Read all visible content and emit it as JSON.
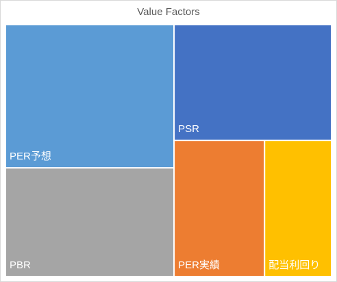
{
  "chart_data": {
    "type": "treemap",
    "title": "Value Factors",
    "categories": [
      "PER予想",
      "PBR",
      "PSR",
      "PER実績",
      "配当利回り"
    ],
    "values": [
      29.4,
      22.3,
      22.2,
      15.0,
      11.1
    ],
    "colors": [
      "#5b9bd5",
      "#a5a5a5",
      "#4472c4",
      "#ed7d31",
      "#ffc000"
    ]
  }
}
